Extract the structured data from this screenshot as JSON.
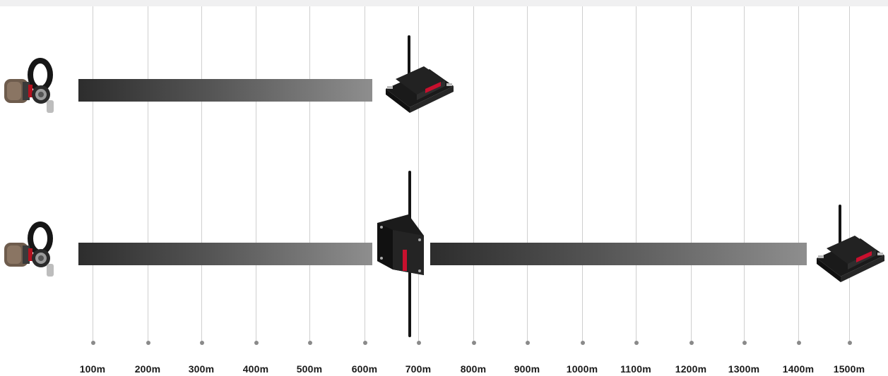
{
  "ticks": [
    "100m",
    "200m",
    "300m",
    "400m",
    "500m",
    "600m",
    "700m",
    "800m",
    "900m",
    "1000m",
    "1100m",
    "1200m",
    "1300m",
    "1400m",
    "1500m"
  ],
  "colors": {
    "bar_start": "#2d2d2d",
    "bar_end": "#8e8e8e",
    "device_body": "#1c1c1c",
    "device_accent": "#c8102e",
    "sensor_metal": "#7a6a5a"
  },
  "icons": {
    "load_sensor": "shackle-load-cell-icon",
    "receiver": "wireless-receiver-icon",
    "repeater": "wireless-repeater-icon"
  }
}
